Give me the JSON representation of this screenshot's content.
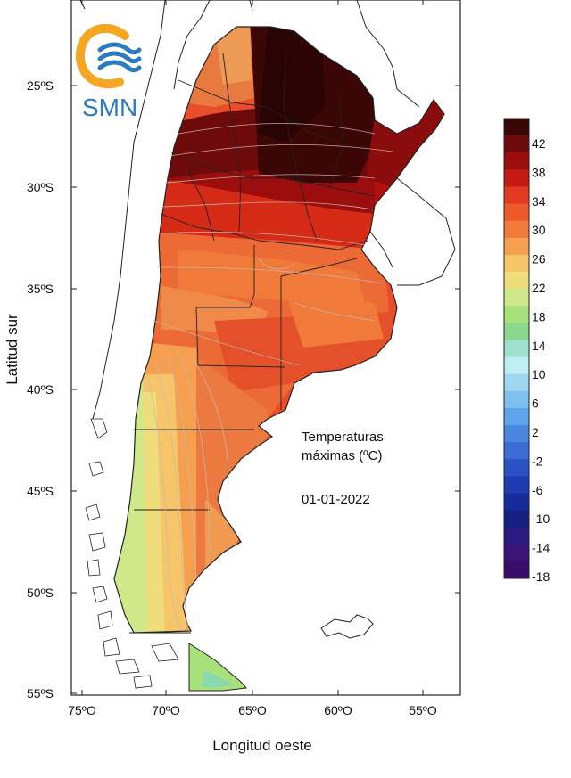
{
  "logo": {
    "text": "SMN",
    "icon": "smn-waves-logo",
    "colors": {
      "orange": "#F5A623",
      "blue": "#2B7BC0"
    }
  },
  "axes": {
    "xlabel": "Longitud oeste",
    "ylabel": "Latitud sur",
    "xticks": [
      "75ºO",
      "70ºO",
      "65ºO",
      "60ºO",
      "55ºO"
    ],
    "yticks": [
      "25ºS",
      "30ºS",
      "35ºS",
      "40ºS",
      "45ºS",
      "50ºS",
      "55ºS"
    ]
  },
  "annotation": {
    "line1": "Temperaturas",
    "line2": "máximas (ºC)",
    "date": "01-01-2022"
  },
  "legend": {
    "labels": [
      "42",
      "38",
      "34",
      "30",
      "26",
      "22",
      "18",
      "14",
      "10",
      "6",
      "2",
      "-2",
      "-6",
      "-10",
      "-14",
      "-18"
    ],
    "colors": [
      "#3a0606",
      "#6e0a0a",
      "#9c0d0d",
      "#c41a12",
      "#e23a1f",
      "#ec5a2a",
      "#f07a3a",
      "#f4a050",
      "#f6c56a",
      "#eedd7a",
      "#cfe98a",
      "#a8e07a",
      "#8ad88e",
      "#9fe0cf",
      "#bfeef2",
      "#9fd6f0",
      "#7ec0ef",
      "#5ea4ea",
      "#4a88e0",
      "#3a6cd4",
      "#2a52c4",
      "#1e3cb0",
      "#162c98",
      "#142080",
      "#2a1a80",
      "#3a1476",
      "#3a0c6a"
    ]
  }
}
